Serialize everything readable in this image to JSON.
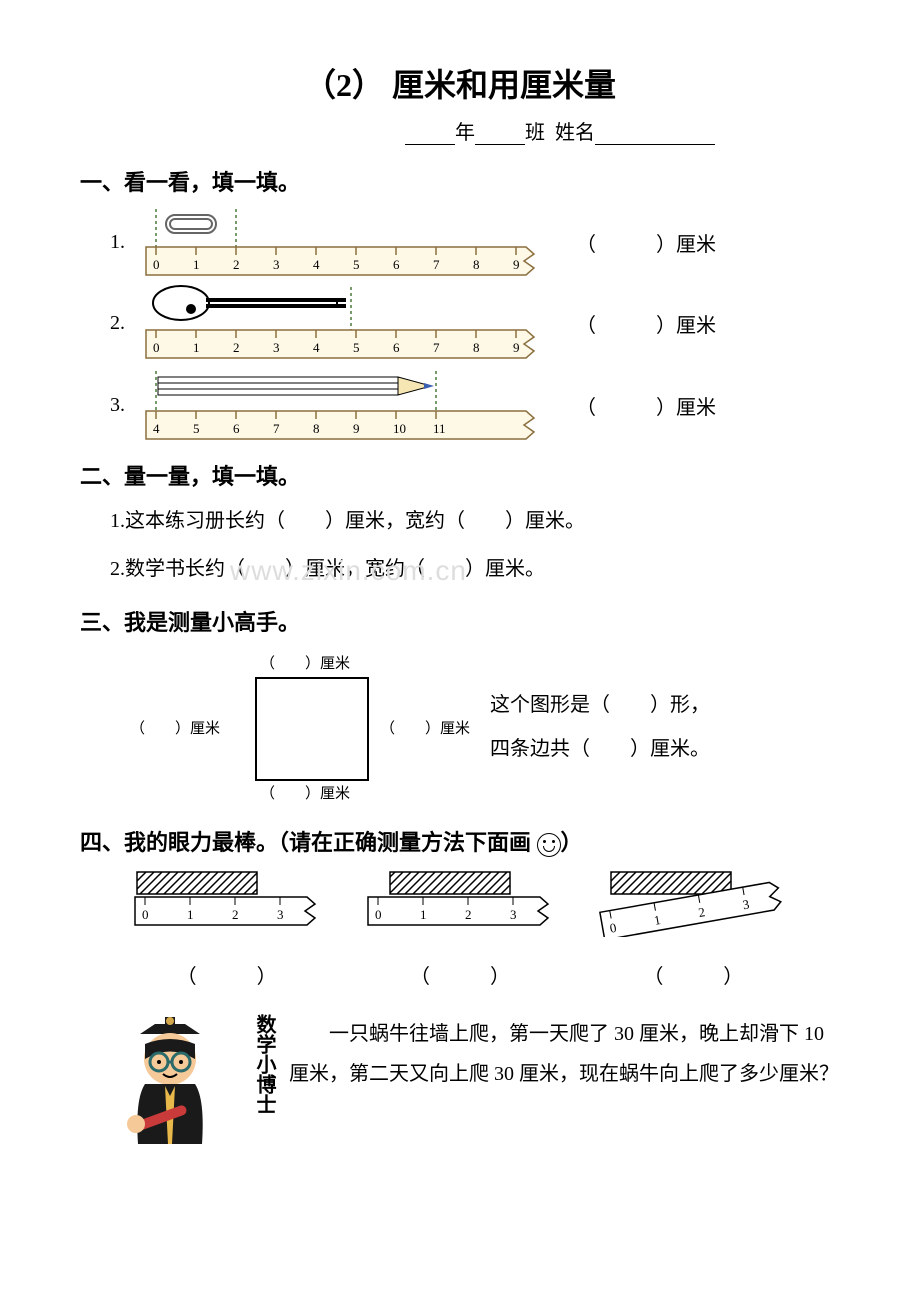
{
  "title": "（2） 厘米和用厘米量",
  "name_line": {
    "year": "年",
    "class": "班",
    "name_label": "姓名"
  },
  "section1": {
    "head": "一、看一看，填一填。",
    "items": [
      {
        "num": "1.",
        "answer_cm": "（　　　）厘米",
        "ruler": {
          "start": 0,
          "end": 9,
          "torn": true
        },
        "object": "clip",
        "obj_end_tick": 2
      },
      {
        "num": "2.",
        "answer_cm": "（　　　）厘米",
        "ruler": {
          "start": 0,
          "end": 9,
          "torn": true
        },
        "object": "key",
        "obj_end_tick": 5
      },
      {
        "num": "3.",
        "answer_cm": "（　　　）厘米",
        "ruler": {
          "start": 4,
          "end": 11,
          "torn": true
        },
        "object": "pencil",
        "obj_start_tick": 4,
        "obj_end_tick": 11
      }
    ]
  },
  "section2": {
    "head": "二、量一量，填一填。",
    "q1": "1.这本练习册长约（　　）厘米，宽约（　　）厘米。",
    "q2": "2.数学书长约（　　）厘米，宽约（　　）厘米。"
  },
  "watermark": "www.zixin.com.cn",
  "section3": {
    "head": "三、我是测量小高手。",
    "top": "（　　）厘米",
    "left": "（　　）厘米",
    "right": "（　　）厘米",
    "bottom": "（　　）厘米",
    "desc1": "这个图形是（　　）形，",
    "desc2": "四条边共（　　）厘米。"
  },
  "section4": {
    "head_prefix": "四、我的眼力最棒。（请在正确测量方法下面画 ",
    "head_suffix": "）",
    "paren": "（　　　）",
    "rulers": [
      {
        "start": 0,
        "end": 3,
        "mode": "aligned"
      },
      {
        "start": 0,
        "end": 3,
        "mode": "offset"
      },
      {
        "start": 0,
        "end": 3,
        "mode": "tilted"
      }
    ]
  },
  "doctor": {
    "label": "数学小博士",
    "text": "一只蜗牛往墙上爬，第一天爬了 30 厘米，晚上却滑下 10 厘米，第二天又向上爬 30 厘米，现在蜗牛向上爬了多少厘米？"
  },
  "colors": {
    "ruler_fill": "#fef9e7",
    "ruler_stroke": "#8b6f3e",
    "object_blue": "#3a5fb0",
    "object_gray": "#888888",
    "dash": "#4a7a3a"
  }
}
